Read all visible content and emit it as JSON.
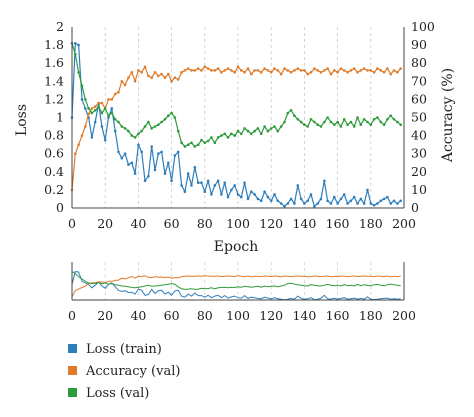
{
  "chart_data": [
    {
      "type": "line",
      "xlabel": "Epoch",
      "ylabel_left": "Loss",
      "ylabel_right": "Accuracy (%)",
      "xlim": [
        0,
        200
      ],
      "ylim_left": [
        0,
        2
      ],
      "ylim_right": [
        0,
        100
      ],
      "x_ticks": [
        0,
        20,
        40,
        60,
        80,
        100,
        120,
        140,
        160,
        180,
        200
      ],
      "y_ticks_left": [
        0,
        0.2,
        0.4,
        0.6,
        0.8,
        1,
        1.2,
        1.4,
        1.6,
        1.8,
        2
      ],
      "y_ticks_right": [
        0,
        10,
        20,
        30,
        40,
        50,
        60,
        70,
        80,
        90,
        100
      ],
      "grid": "vertical dashed",
      "series": [
        {
          "name": "Loss (train)",
          "color": "#2e7ebc",
          "axis": "left",
          "x": [
            0,
            2,
            4,
            6,
            8,
            10,
            12,
            14,
            16,
            18,
            20,
            22,
            24,
            26,
            28,
            30,
            32,
            34,
            36,
            38,
            40,
            42,
            44,
            46,
            48,
            50,
            52,
            54,
            56,
            58,
            60,
            62,
            64,
            66,
            68,
            70,
            72,
            74,
            76,
            78,
            80,
            82,
            84,
            86,
            88,
            90,
            92,
            94,
            96,
            98,
            100,
            102,
            104,
            106,
            108,
            110,
            112,
            114,
            116,
            118,
            120,
            122,
            124,
            126,
            128,
            130,
            132,
            134,
            136,
            138,
            140,
            142,
            144,
            146,
            148,
            150,
            152,
            154,
            156,
            158,
            160,
            162,
            164,
            166,
            168,
            170,
            172,
            174,
            176,
            178,
            180,
            182,
            184,
            186,
            188,
            190,
            192,
            194,
            196,
            198
          ],
          "values": [
            1.0,
            1.82,
            1.8,
            1.2,
            1.1,
            1.0,
            0.78,
            0.95,
            1.15,
            0.9,
            0.75,
            1.0,
            1.1,
            0.85,
            0.62,
            0.55,
            0.6,
            0.48,
            0.5,
            0.38,
            0.7,
            0.62,
            0.3,
            0.35,
            0.68,
            0.42,
            0.6,
            0.62,
            0.38,
            0.5,
            0.3,
            0.58,
            0.62,
            0.25,
            0.18,
            0.38,
            0.25,
            0.45,
            0.28,
            0.28,
            0.18,
            0.3,
            0.15,
            0.25,
            0.3,
            0.15,
            0.28,
            0.12,
            0.2,
            0.25,
            0.15,
            0.12,
            0.28,
            0.1,
            0.18,
            0.15,
            0.1,
            0.08,
            0.18,
            0.12,
            0.08,
            0.15,
            0.08,
            0.05,
            0.02,
            0.05,
            0.1,
            0.05,
            0.25,
            0.1,
            0.05,
            0.08,
            0.15,
            0.02,
            0.05,
            0.1,
            0.3,
            0.08,
            0.05,
            0.12,
            0.05,
            0.1,
            0.15,
            0.05,
            0.08,
            0.12,
            0.05,
            0.1,
            0.05,
            0.2,
            0.05,
            0.03,
            0.05,
            0.08,
            0.1,
            0.12,
            0.05,
            0.08,
            0.05,
            0.08
          ]
        },
        {
          "name": "Accuracy (val)",
          "color": "#e07b2a",
          "axis": "right",
          "x": [
            0,
            2,
            4,
            6,
            8,
            10,
            12,
            14,
            16,
            18,
            20,
            22,
            24,
            26,
            28,
            30,
            32,
            34,
            36,
            38,
            40,
            42,
            44,
            46,
            48,
            50,
            52,
            54,
            56,
            58,
            60,
            62,
            64,
            66,
            68,
            70,
            72,
            74,
            76,
            78,
            80,
            82,
            84,
            86,
            88,
            90,
            92,
            94,
            96,
            98,
            100,
            102,
            104,
            106,
            108,
            110,
            112,
            114,
            116,
            118,
            120,
            122,
            124,
            126,
            128,
            130,
            132,
            134,
            136,
            138,
            140,
            142,
            144,
            146,
            148,
            150,
            152,
            154,
            156,
            158,
            160,
            162,
            164,
            166,
            168,
            170,
            172,
            174,
            176,
            178,
            180,
            182,
            184,
            186,
            188,
            190,
            192,
            194,
            196,
            198
          ],
          "values": [
            10,
            30,
            35,
            40,
            45,
            52,
            55,
            56,
            58,
            58,
            55,
            60,
            60,
            63,
            64,
            70,
            68,
            72,
            75,
            70,
            76,
            75,
            78,
            73,
            72,
            75,
            73,
            74,
            72,
            74,
            70,
            72,
            71,
            75,
            76,
            77,
            76,
            76,
            77,
            76,
            78,
            77,
            76,
            76,
            77,
            75,
            76,
            77,
            76,
            75,
            78,
            76,
            75,
            77,
            74,
            76,
            76,
            75,
            77,
            76,
            75,
            77,
            76,
            74,
            77,
            76,
            75,
            76,
            77,
            76,
            76,
            74,
            75,
            77,
            76,
            75,
            76,
            77,
            74,
            76,
            75,
            77,
            76,
            75,
            76,
            77,
            75,
            76,
            77,
            76,
            76,
            75,
            77,
            76,
            75,
            77,
            74,
            76,
            75,
            77
          ]
        },
        {
          "name": "Loss (val)",
          "color": "#2e9b3a",
          "axis": "left",
          "x": [
            0,
            2,
            4,
            6,
            8,
            10,
            12,
            14,
            16,
            18,
            20,
            22,
            24,
            26,
            28,
            30,
            32,
            34,
            36,
            38,
            40,
            42,
            44,
            46,
            48,
            50,
            52,
            54,
            56,
            58,
            60,
            62,
            64,
            66,
            68,
            70,
            72,
            74,
            76,
            78,
            80,
            82,
            84,
            86,
            88,
            90,
            92,
            94,
            96,
            98,
            100,
            102,
            104,
            106,
            108,
            110,
            112,
            114,
            116,
            118,
            120,
            122,
            124,
            126,
            128,
            130,
            132,
            134,
            136,
            138,
            140,
            142,
            144,
            146,
            148,
            150,
            152,
            154,
            156,
            158,
            160,
            162,
            164,
            166,
            168,
            170,
            172,
            174,
            176,
            178,
            180,
            182,
            184,
            186,
            188,
            190,
            192,
            194,
            196,
            198
          ],
          "values": [
            1.82,
            1.7,
            1.5,
            1.35,
            1.2,
            1.1,
            1.05,
            1.08,
            1.12,
            1.05,
            1.1,
            1.02,
            1.05,
            0.98,
            0.95,
            0.9,
            0.88,
            0.85,
            0.8,
            0.78,
            0.82,
            0.85,
            0.9,
            0.95,
            0.88,
            0.9,
            0.92,
            0.95,
            0.98,
            1.02,
            1.05,
            1.0,
            0.85,
            0.72,
            0.68,
            0.7,
            0.72,
            0.68,
            0.7,
            0.75,
            0.72,
            0.74,
            0.78,
            0.72,
            0.78,
            0.8,
            0.82,
            0.78,
            0.82,
            0.8,
            0.85,
            0.82,
            0.88,
            0.85,
            0.82,
            0.85,
            0.88,
            0.82,
            0.9,
            0.85,
            0.88,
            0.9,
            0.85,
            0.9,
            0.95,
            1.05,
            1.08,
            1.02,
            0.98,
            0.95,
            0.92,
            0.9,
            0.98,
            0.95,
            0.92,
            0.9,
            0.95,
            1.0,
            0.95,
            0.92,
            0.95,
            0.9,
            0.98,
            0.92,
            0.95,
            0.9,
            1.0,
            0.92,
            0.98,
            0.95,
            0.92,
            0.98,
            1.0,
            0.95,
            0.92,
            0.98,
            1.02,
            0.98,
            0.95,
            0.92
          ]
        }
      ]
    },
    {
      "type": "line",
      "role": "overview",
      "xlim": [
        0,
        200
      ],
      "x_ticks": [
        0,
        20,
        40,
        60,
        80,
        100,
        120,
        140,
        160,
        180,
        200
      ],
      "grid": "vertical dashed",
      "series_ref": [
        "Loss (train)",
        "Accuracy (val)",
        "Loss (val)"
      ]
    }
  ],
  "legend": {
    "placement": "bottom-left",
    "items": [
      {
        "label": "Loss (train)",
        "color": "#2e7ebc"
      },
      {
        "label": "Accuracy (val)",
        "color": "#e07b2a"
      },
      {
        "label": "Loss (val)",
        "color": "#2e9b3a"
      }
    ]
  }
}
